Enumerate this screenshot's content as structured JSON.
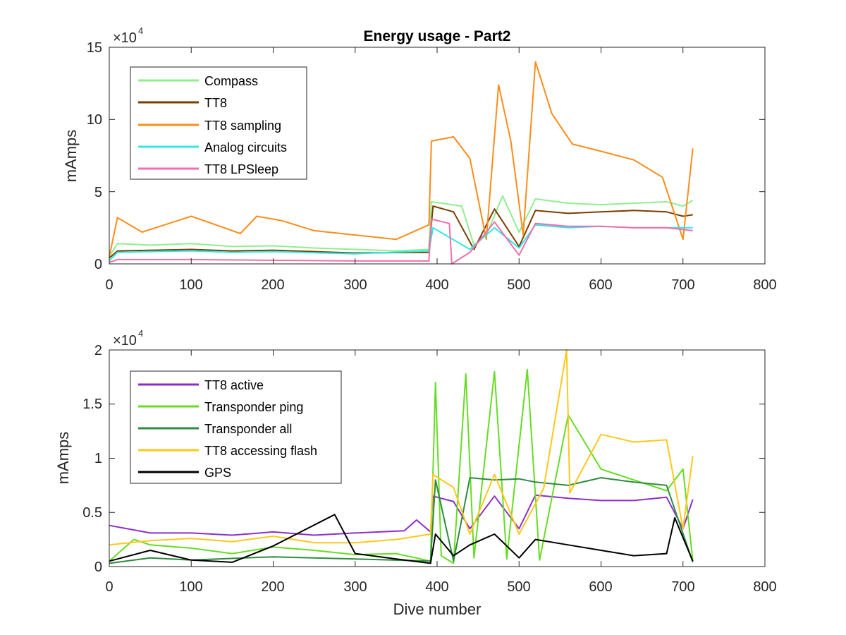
{
  "chart_data": [
    {
      "type": "line",
      "title": "Energy usage - Part2",
      "xlabel": "",
      "ylabel": "mAmps",
      "xlim": [
        0,
        800
      ],
      "ylim": [
        0,
        150000
      ],
      "x_ticks": [
        "0",
        "100",
        "200",
        "300",
        "400",
        "500",
        "600",
        "700",
        "800"
      ],
      "y_ticks": [
        "0",
        "5",
        "10",
        "15"
      ],
      "y_exponent": {
        "base": "×10",
        "power": "4"
      },
      "legend_position": "top-left",
      "grid": false,
      "series": [
        {
          "name": "Compass",
          "color": "#90EE90",
          "points": [
            [
              0,
              5000
            ],
            [
              10,
              14000
            ],
            [
              50,
              13000
            ],
            [
              100,
              14000
            ],
            [
              150,
              12000
            ],
            [
              200,
              12500
            ],
            [
              250,
              11000
            ],
            [
              300,
              10000
            ],
            [
              350,
              9000
            ],
            [
              390,
              10000
            ],
            [
              393,
              43000
            ],
            [
              430,
              40000
            ],
            [
              445,
              13000
            ],
            [
              460,
              20000
            ],
            [
              480,
              47000
            ],
            [
              500,
              22000
            ],
            [
              520,
              45000
            ],
            [
              560,
              42000
            ],
            [
              600,
              41000
            ],
            [
              640,
              42000
            ],
            [
              680,
              43000
            ],
            [
              700,
              40000
            ],
            [
              712,
              44000
            ]
          ]
        },
        {
          "name": "TT8",
          "color": "#7B3F00",
          "points": [
            [
              0,
              4000
            ],
            [
              10,
              9000
            ],
            [
              100,
              10000
            ],
            [
              150,
              9000
            ],
            [
              200,
              9500
            ],
            [
              300,
              7500
            ],
            [
              390,
              8000
            ],
            [
              395,
              40000
            ],
            [
              420,
              36000
            ],
            [
              445,
              10000
            ],
            [
              470,
              38000
            ],
            [
              500,
              12000
            ],
            [
              520,
              37000
            ],
            [
              560,
              35000
            ],
            [
              600,
              36000
            ],
            [
              640,
              37000
            ],
            [
              680,
              36000
            ],
            [
              700,
              33000
            ],
            [
              712,
              34000
            ]
          ]
        },
        {
          "name": "TT8 sampling",
          "color": "#FF8C1A",
          "points": [
            [
              0,
              5000
            ],
            [
              10,
              32000
            ],
            [
              40,
              22000
            ],
            [
              100,
              33000
            ],
            [
              130,
              27000
            ],
            [
              160,
              21000
            ],
            [
              180,
              33000
            ],
            [
              210,
              30000
            ],
            [
              250,
              23000
            ],
            [
              300,
              20000
            ],
            [
              350,
              17000
            ],
            [
              390,
              27000
            ],
            [
              393,
              85000
            ],
            [
              420,
              88000
            ],
            [
              440,
              73000
            ],
            [
              460,
              17000
            ],
            [
              475,
              124000
            ],
            [
              490,
              85000
            ],
            [
              505,
              20000
            ],
            [
              520,
              140000
            ],
            [
              540,
              104000
            ],
            [
              565,
              83000
            ],
            [
              600,
              78000
            ],
            [
              640,
              72000
            ],
            [
              675,
              60000
            ],
            [
              700,
              17000
            ],
            [
              712,
              80000
            ]
          ]
        },
        {
          "name": "Analog circuits",
          "color": "#2EE8E8",
          "points": [
            [
              0,
              2000
            ],
            [
              10,
              8000
            ],
            [
              100,
              9000
            ],
            [
              150,
              8000
            ],
            [
              200,
              8500
            ],
            [
              300,
              7000
            ],
            [
              390,
              9000
            ],
            [
              395,
              25000
            ],
            [
              440,
              10000
            ],
            [
              470,
              25000
            ],
            [
              500,
              11000
            ],
            [
              520,
              27000
            ],
            [
              560,
              25000
            ],
            [
              600,
              26000
            ],
            [
              640,
              25000
            ],
            [
              680,
              25000
            ],
            [
              712,
              25000
            ]
          ]
        },
        {
          "name": "TT8 LPSleep",
          "color": "#EE6FB0",
          "points": [
            [
              0,
              1000
            ],
            [
              10,
              3000
            ],
            [
              100,
              3000
            ],
            [
              200,
              2500
            ],
            [
              300,
              2000
            ],
            [
              390,
              2000
            ],
            [
              393,
              31000
            ],
            [
              415,
              28000
            ],
            [
              418,
              0
            ],
            [
              440,
              8000
            ],
            [
              470,
              29000
            ],
            [
              500,
              6000
            ],
            [
              520,
              28000
            ],
            [
              560,
              26000
            ],
            [
              600,
              26000
            ],
            [
              640,
              25000
            ],
            [
              680,
              25000
            ],
            [
              712,
              23000
            ]
          ]
        }
      ]
    },
    {
      "type": "line",
      "title": "",
      "xlabel": "Dive number",
      "ylabel": "mAmps",
      "xlim": [
        0,
        800
      ],
      "ylim": [
        0,
        20000
      ],
      "x_ticks": [
        "0",
        "100",
        "200",
        "300",
        "400",
        "500",
        "600",
        "700",
        "800"
      ],
      "y_ticks": [
        "0",
        "0.5",
        "1",
        "1.5",
        "2"
      ],
      "y_exponent": {
        "base": "×10",
        "power": "4"
      },
      "legend_position": "top-left",
      "grid": false,
      "series": [
        {
          "name": "TT8 active",
          "color": "#8B2FC9",
          "points": [
            [
              0,
              3800
            ],
            [
              50,
              3100
            ],
            [
              100,
              3100
            ],
            [
              150,
              2900
            ],
            [
              200,
              3200
            ],
            [
              250,
              2900
            ],
            [
              300,
              3100
            ],
            [
              360,
              3300
            ],
            [
              375,
              4300
            ],
            [
              392,
              3200
            ],
            [
              395,
              6500
            ],
            [
              420,
              6000
            ],
            [
              440,
              3500
            ],
            [
              470,
              6500
            ],
            [
              500,
              3500
            ],
            [
              520,
              6600
            ],
            [
              560,
              6300
            ],
            [
              600,
              6100
            ],
            [
              640,
              6100
            ],
            [
              680,
              6400
            ],
            [
              700,
              3500
            ],
            [
              712,
              6200
            ]
          ]
        },
        {
          "name": "Transponder ping",
          "color": "#66DD22",
          "points": [
            [
              0,
              500
            ],
            [
              30,
              2500
            ],
            [
              50,
              2000
            ],
            [
              100,
              1700
            ],
            [
              150,
              1200
            ],
            [
              200,
              1800
            ],
            [
              250,
              1500
            ],
            [
              300,
              1100
            ],
            [
              350,
              1200
            ],
            [
              392,
              500
            ],
            [
              398,
              17000
            ],
            [
              405,
              1000
            ],
            [
              420,
              300
            ],
            [
              435,
              17800
            ],
            [
              445,
              800
            ],
            [
              470,
              18000
            ],
            [
              485,
              700
            ],
            [
              510,
              18200
            ],
            [
              525,
              600
            ],
            [
              560,
              14000
            ],
            [
              600,
              9000
            ],
            [
              640,
              8000
            ],
            [
              680,
              7000
            ],
            [
              700,
              9000
            ],
            [
              712,
              500
            ]
          ]
        },
        {
          "name": "Transponder all",
          "color": "#2E8B3E",
          "points": [
            [
              0,
              300
            ],
            [
              50,
              800
            ],
            [
              100,
              600
            ],
            [
              200,
              900
            ],
            [
              300,
              700
            ],
            [
              392,
              500
            ],
            [
              398,
              8000
            ],
            [
              420,
              500
            ],
            [
              440,
              8200
            ],
            [
              470,
              8000
            ],
            [
              500,
              8100
            ],
            [
              520,
              7800
            ],
            [
              560,
              7500
            ],
            [
              600,
              8200
            ],
            [
              640,
              7800
            ],
            [
              680,
              7500
            ],
            [
              712,
              400
            ]
          ]
        },
        {
          "name": "TT8 accessing flash",
          "color": "#FFC81A",
          "points": [
            [
              0,
              2000
            ],
            [
              50,
              2400
            ],
            [
              100,
              2600
            ],
            [
              150,
              2300
            ],
            [
              200,
              2800
            ],
            [
              250,
              2200
            ],
            [
              300,
              2200
            ],
            [
              350,
              2500
            ],
            [
              392,
              3000
            ],
            [
              395,
              8500
            ],
            [
              420,
              7300
            ],
            [
              440,
              3000
            ],
            [
              470,
              8500
            ],
            [
              500,
              3000
            ],
            [
              530,
              7200
            ],
            [
              558,
              20000
            ],
            [
              562,
              6800
            ],
            [
              600,
              12200
            ],
            [
              640,
              11500
            ],
            [
              680,
              11700
            ],
            [
              700,
              3500
            ],
            [
              712,
              10200
            ]
          ]
        },
        {
          "name": "GPS",
          "color": "#000000",
          "points": [
            [
              0,
              500
            ],
            [
              50,
              1500
            ],
            [
              100,
              600
            ],
            [
              150,
              400
            ],
            [
              200,
              1900
            ],
            [
              275,
              4800
            ],
            [
              300,
              1200
            ],
            [
              350,
              700
            ],
            [
              392,
              300
            ],
            [
              398,
              3000
            ],
            [
              420,
              1000
            ],
            [
              440,
              2000
            ],
            [
              470,
              3000
            ],
            [
              500,
              800
            ],
            [
              520,
              2500
            ],
            [
              560,
              2000
            ],
            [
              600,
              1500
            ],
            [
              640,
              1000
            ],
            [
              680,
              1200
            ],
            [
              690,
              4500
            ],
            [
              712,
              500
            ]
          ]
        }
      ]
    }
  ]
}
